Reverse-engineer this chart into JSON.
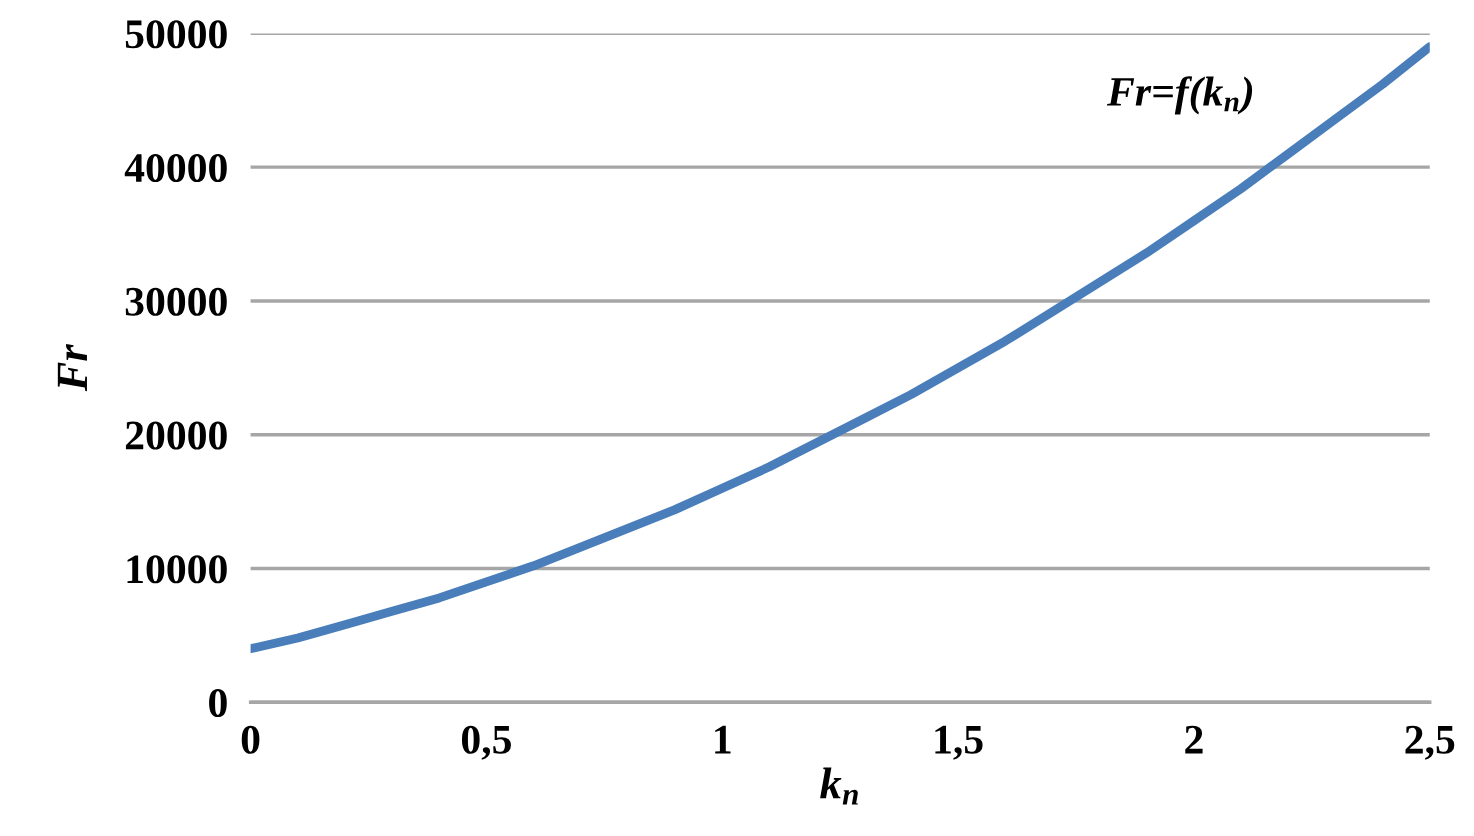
{
  "chart_data": {
    "type": "line",
    "xlabel": "k$_{п}$",
    "ylabel": "Fr",
    "series": [
      {
        "name": "Fr=f(k$_{п}$)",
        "color": "#4a7ebb",
        "x": [
          0,
          0.1,
          0.2,
          0.3,
          0.4,
          0.5,
          0.6,
          0.7,
          0.8,
          0.9,
          1,
          1.1,
          1.2,
          1.3,
          1.4,
          1.5,
          1.6,
          1.7,
          1.8,
          1.9,
          2,
          2.1,
          2.2,
          2.3,
          2.4,
          2.5
        ],
        "values": [
          4000,
          4800,
          5800,
          6800,
          7800,
          9000,
          10200,
          11600,
          13000,
          14400,
          16000,
          17600,
          19400,
          21200,
          23000,
          25000,
          27000,
          29200,
          31400,
          33600,
          36000,
          38400,
          41000,
          43600,
          46200,
          49000
        ]
      }
    ],
    "xlim": [
      0,
      2.5
    ],
    "ylim": [
      0,
      50000
    ],
    "xticks": [
      0,
      {
        "value": 0.5,
        "label": "0,5"
      },
      1,
      {
        "value": 1.5,
        "label": "1,5"
      },
      2,
      {
        "value": 2.5,
        "label": "2,5"
      }
    ],
    "yticks": [
      0,
      10000,
      20000,
      30000,
      40000,
      50000
    ],
    "grid": "y",
    "legend": false,
    "marker": "none",
    "line_style": "solid"
  }
}
